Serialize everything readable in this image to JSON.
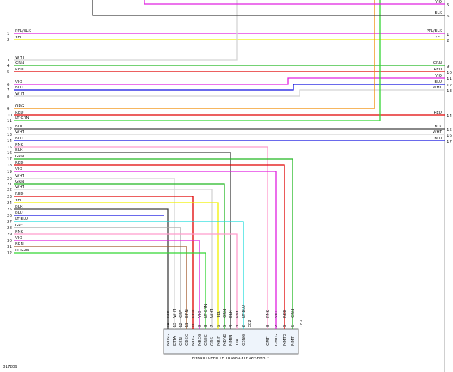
{
  "left_wires": [
    {
      "number": "1",
      "name": "PPL/BLK",
      "color": "#e020e0"
    },
    {
      "number": "2",
      "name": "YEL",
      "color": "#f0f000"
    },
    {
      "number": "3",
      "name": "WHT",
      "color": "#d4d4d4"
    },
    {
      "number": "4",
      "name": "GRN",
      "color": "#22b822"
    },
    {
      "number": "5",
      "name": "RED",
      "color": "#e00000"
    },
    {
      "number": "6",
      "name": "VIO",
      "color": "#e020e0"
    },
    {
      "number": "7",
      "name": "BLU",
      "color": "#1010e0"
    },
    {
      "number": "8",
      "name": "WHT",
      "color": "#d4d4d4"
    },
    {
      "number": "9",
      "name": "ORG",
      "color": "#f08a00"
    },
    {
      "number": "10",
      "name": "RED",
      "color": "#e00000"
    },
    {
      "number": "11",
      "name": "LT GRN",
      "color": "#33d633"
    },
    {
      "number": "12",
      "name": "BLK",
      "color": "#404040"
    },
    {
      "number": "13",
      "name": "WHT",
      "color": "#d4d4d4"
    },
    {
      "number": "14",
      "name": "BLU",
      "color": "#1010e0"
    },
    {
      "number": "15",
      "name": "PNK",
      "color": "#ff9ccc"
    },
    {
      "number": "16",
      "name": "BLK",
      "color": "#404040"
    },
    {
      "number": "17",
      "name": "GRN",
      "color": "#22b822"
    },
    {
      "number": "18",
      "name": "RED",
      "color": "#e00000"
    },
    {
      "number": "19",
      "name": "VIO",
      "color": "#e020e0"
    },
    {
      "number": "20",
      "name": "WHT",
      "color": "#d4d4d4"
    },
    {
      "number": "21",
      "name": "GRN",
      "color": "#22b822"
    },
    {
      "number": "22",
      "name": "WHT",
      "color": "#d4d4d4"
    },
    {
      "number": "23",
      "name": "RED",
      "color": "#e00000"
    },
    {
      "number": "24",
      "name": "YEL",
      "color": "#f0f000"
    },
    {
      "number": "25",
      "name": "BLK",
      "color": "#404040"
    },
    {
      "number": "26",
      "name": "BLU",
      "color": "#1010e0"
    },
    {
      "number": "27",
      "name": "LT BLU",
      "color": "#22dcdc"
    },
    {
      "number": "28",
      "name": "GRY",
      "color": "#a8a8a8"
    },
    {
      "number": "29",
      "name": "PNK",
      "color": "#ff9ccc"
    },
    {
      "number": "30",
      "name": "VIO",
      "color": "#e020e0"
    },
    {
      "number": "31",
      "name": "BRN",
      "color": "#a0582a"
    },
    {
      "number": "32",
      "name": "LT GRN",
      "color": "#33d633"
    }
  ],
  "right_wires": [
    {
      "name": "VIO",
      "number": "5",
      "color": "#e020e0"
    },
    {
      "name": "BLK",
      "number": "6",
      "color": "#404040"
    },
    {
      "name": "PPL/BLK",
      "number": "1"
    },
    {
      "name": "YEL",
      "number": "2"
    },
    {
      "name": "GRN",
      "number": "9"
    },
    {
      "name": "RED",
      "number": "10"
    },
    {
      "name": "VIO",
      "number": "11"
    },
    {
      "name": "BLU",
      "number": "12"
    },
    {
      "name": "WHT",
      "number": "13"
    },
    {
      "name": "RED",
      "number": "14"
    },
    {
      "name": "BLK",
      "number": "15"
    },
    {
      "name": "WHT",
      "number": "16"
    },
    {
      "name": "BLU",
      "number": "17"
    }
  ],
  "connector": {
    "pins_a": [
      {
        "number": "14",
        "wire": "BLK",
        "terminal": "MDSG"
      },
      {
        "number": "13",
        "wire": "WHT",
        "terminal": "ETTA"
      },
      {
        "number": "12",
        "wire": "GRY",
        "terminal": "GSN"
      },
      {
        "number": "11",
        "wire": "BRN",
        "terminal": "GDSG"
      },
      {
        "number": "10",
        "wire": "RED",
        "terminal": "MOG"
      },
      {
        "number": "9",
        "wire": "VIO",
        "terminal": "MREG"
      },
      {
        "number": "8",
        "wire": "LT GRN",
        "terminal": "GREG"
      },
      {
        "number": "7",
        "wire": "WHT",
        "terminal": "GDS"
      },
      {
        "number": "6",
        "wire": "YEL",
        "terminal": "MRIF"
      },
      {
        "number": "5",
        "wire": "GRN",
        "terminal": "MDNG"
      },
      {
        "number": "4",
        "wire": "BLK",
        "terminal": "MMIN"
      },
      {
        "number": "3",
        "wire": "PNK",
        "terminal": "TTA"
      },
      {
        "number": "2",
        "wire": "LT BLU",
        "terminal": "GSNG"
      }
    ],
    "id_a": "C82",
    "pins_b": [
      {
        "number": "8",
        "wire": "PNK",
        "terminal": "GMT"
      },
      {
        "number": "7",
        "wire": "VIO",
        "terminal": "GMTG"
      },
      {
        "number": "6",
        "wire": "RED",
        "terminal": "MMTG"
      },
      {
        "number": "5",
        "wire": "GRN",
        "terminal": "MMT"
      }
    ],
    "id_b": "C82",
    "title": "HYBRID VEHICLE TRANSAXLE ASSEMBLY"
  },
  "figure_id": "817809"
}
